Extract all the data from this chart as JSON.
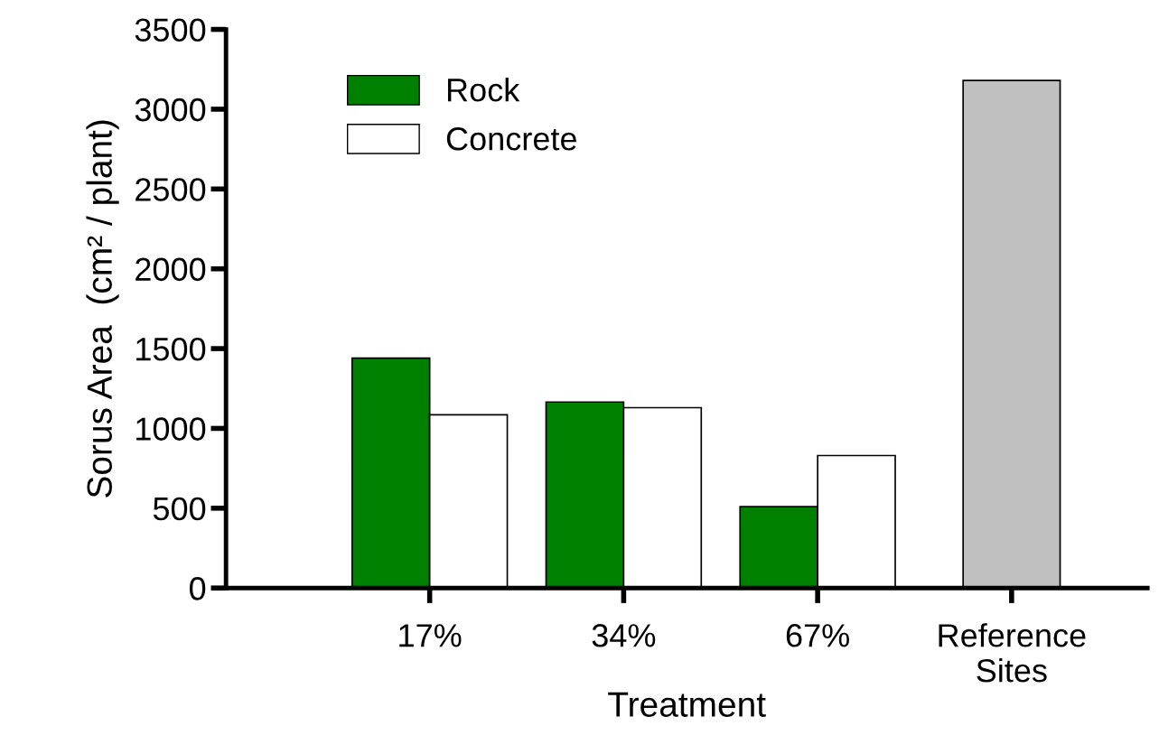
{
  "chart_data": {
    "type": "bar",
    "xlabel": "Treatment",
    "ylabel": "Sorus Area  (cm² / plant)",
    "categories": [
      "17%",
      "34%",
      "67%",
      "Reference\nSites"
    ],
    "series": [
      {
        "name": "Rock",
        "color": "#008000",
        "values": [
          1440,
          1165,
          510,
          null
        ]
      },
      {
        "name": "Concrete",
        "color": "#ffffff",
        "values": [
          1085,
          1130,
          830,
          null
        ]
      },
      {
        "color": "#c0c0c0",
        "values": [
          null,
          null,
          null,
          3180
        ]
      }
    ],
    "ylim": [
      0,
      3500
    ],
    "yticks": [
      0,
      500,
      1000,
      1500,
      2000,
      2500,
      3000,
      3500
    ],
    "grid": false,
    "legend": "top left"
  }
}
